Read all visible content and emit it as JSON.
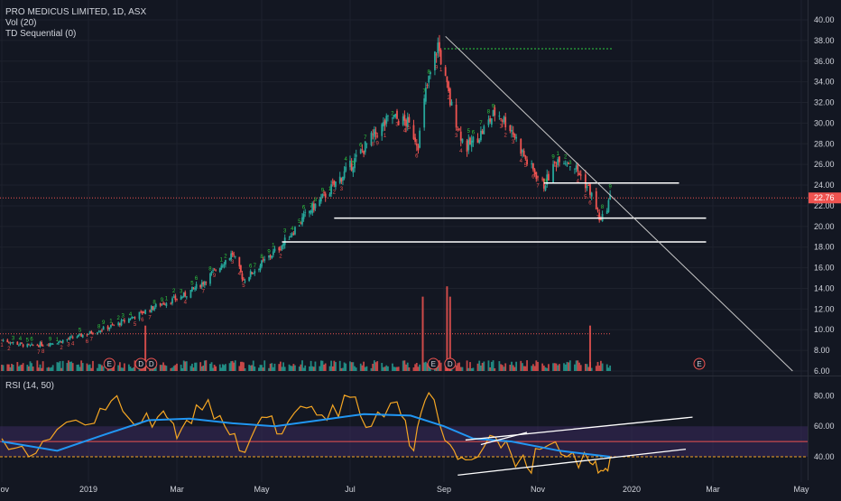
{
  "header": {
    "symbol_line": "PRO MEDICUS LIMITED, 1D, ASX",
    "vol_label": "Vol (20)",
    "td_label": "TD Sequential (0)",
    "rsi_label": "RSI (14, 50)"
  },
  "colors": {
    "background": "#131722",
    "grid": "#1e222d",
    "up": "#26a69a",
    "down": "#ef5350",
    "td_up": "#2ecc40",
    "td_down": "#ef5350",
    "trendline": "#c8c8c8",
    "support": "#ffffff",
    "rsi_line": "#f5a623",
    "rsi_ma": "#2196f3",
    "rsi_band": "#3a2a5c",
    "price_label_bg": "#ef5350"
  },
  "chart_data": [
    {
      "type": "candlestick",
      "title": "PRO MEDICUS LIMITED, 1D, ASX",
      "x_ticks": [
        "Nov",
        "2019",
        "Mar",
        "May",
        "Jul",
        "Sep",
        "Nov",
        "2020",
        "Mar",
        "May"
      ],
      "x_tick_dates": [
        "2018-11-01",
        "2019-01-01",
        "2019-03-01",
        "2019-05-01",
        "2019-07-01",
        "2019-09-01",
        "2019-11-01",
        "2020-01-01",
        "2020-03-01",
        "2020-05-01"
      ],
      "y_ticks": [
        "40.00",
        "38.00",
        "36.00",
        "34.00",
        "32.00",
        "30.00",
        "28.00",
        "26.00",
        "24.00",
        "22.00",
        "20.00",
        "18.00",
        "16.00",
        "14.00",
        "12.00",
        "10.00",
        "8.00",
        "6.00"
      ],
      "ylim": [
        6,
        40
      ],
      "last_price": "22.76",
      "close_series": [
        [
          "2018-11-01",
          9.0
        ],
        [
          "2018-11-20",
          8.4
        ],
        [
          "2018-12-10",
          8.8
        ],
        [
          "2018-12-31",
          9.6
        ],
        [
          "2019-01-20",
          10.5
        ],
        [
          "2019-02-05",
          11.6
        ],
        [
          "2019-02-20",
          12.6
        ],
        [
          "2019-03-05",
          13.2
        ],
        [
          "2019-03-20",
          14.6
        ],
        [
          "2019-04-01",
          16.2
        ],
        [
          "2019-04-10",
          17.4
        ],
        [
          "2019-04-18",
          14.8
        ],
        [
          "2019-05-01",
          16.4
        ],
        [
          "2019-05-15",
          18.2
        ],
        [
          "2019-06-01",
          21.2
        ],
        [
          "2019-06-15",
          23.2
        ],
        [
          "2019-07-01",
          25.8
        ],
        [
          "2019-07-15",
          28.5
        ],
        [
          "2019-07-28",
          30.6
        ],
        [
          "2019-08-08",
          30.0
        ],
        [
          "2019-08-15",
          28.0
        ],
        [
          "2019-08-20",
          33.0
        ],
        [
          "2019-08-28",
          37.6
        ],
        [
          "2019-09-05",
          32.0
        ],
        [
          "2019-09-15",
          27.5
        ],
        [
          "2019-09-25",
          29.0
        ],
        [
          "2019-10-05",
          31.2
        ],
        [
          "2019-10-15",
          29.4
        ],
        [
          "2019-10-25",
          26.2
        ],
        [
          "2019-11-05",
          24.0
        ],
        [
          "2019-11-15",
          26.8
        ],
        [
          "2019-11-25",
          25.8
        ],
        [
          "2019-12-05",
          23.4
        ],
        [
          "2019-12-12",
          20.4
        ],
        [
          "2019-12-18",
          22.76
        ]
      ],
      "volume_markers": [
        "E",
        "D",
        "D",
        "E",
        "D",
        "E"
      ],
      "volume_marker_dates": [
        "2019-01-15",
        "2019-02-05",
        "2019-02-12",
        "2019-08-25",
        "2019-09-05",
        "2020-02-20"
      ],
      "volume_spikes": [
        {
          "date": "2019-02-08",
          "level": 10.4
        },
        {
          "date": "2019-08-18",
          "level": 13.2
        },
        {
          "date": "2019-09-03",
          "level": 14.2
        },
        {
          "date": "2019-09-05",
          "level": 13.2
        },
        {
          "date": "2019-12-05",
          "level": 10.4
        }
      ],
      "levels": {
        "resistance_top": 37.2,
        "support_1": 24.2,
        "support_2": 20.8,
        "support_3": 18.5,
        "dotted_low": 9.6
      },
      "trendline": [
        [
          "2019-09-02",
          38.4
        ],
        [
          "2020-04-25",
          6.0
        ]
      ]
    },
    {
      "type": "line",
      "title": "RSI (14, 50)",
      "y_ticks": [
        "80.00",
        "60.00",
        "40.00"
      ],
      "ylim": [
        27,
        85
      ],
      "x_ticks": [
        "Nov",
        "2019",
        "Mar",
        "May",
        "Jul",
        "Sep",
        "Nov",
        "2020",
        "Mar",
        "May"
      ],
      "series": [
        {
          "values": [
            [
              "2018-11-01",
              52
            ],
            [
              "2018-11-20",
              40
            ],
            [
              "2018-12-10",
              58
            ],
            [
              "2019-01-05",
              62
            ],
            [
              "2019-01-20",
              80
            ],
            [
              "2019-02-05",
              62
            ],
            [
              "2019-02-20",
              70
            ],
            [
              "2019-03-01",
              52
            ],
            [
              "2019-03-15",
              74
            ],
            [
              "2019-04-01",
              67
            ],
            [
              "2019-04-15",
              44
            ],
            [
              "2019-05-01",
              66
            ],
            [
              "2019-05-15",
              55
            ],
            [
              "2019-06-01",
              72
            ],
            [
              "2019-06-15",
              64
            ],
            [
              "2019-07-01",
              79
            ],
            [
              "2019-07-15",
              60
            ],
            [
              "2019-08-01",
              76
            ],
            [
              "2019-08-12",
              44
            ],
            [
              "2019-08-22",
              82
            ],
            [
              "2019-09-05",
              48
            ],
            [
              "2019-09-15",
              38
            ],
            [
              "2019-10-01",
              54
            ],
            [
              "2019-10-15",
              41
            ],
            [
              "2019-10-25",
              33
            ],
            [
              "2019-11-05",
              46
            ],
            [
              "2019-11-20",
              40
            ],
            [
              "2019-12-05",
              36
            ],
            [
              "2019-12-12",
              31
            ],
            [
              "2019-12-18",
              39
            ]
          ]
        },
        {
          "values": [
            [
              "2018-11-01",
              50
            ],
            [
              "2018-12-10",
              44
            ],
            [
              "2019-01-10",
              54
            ],
            [
              "2019-02-10",
              64
            ],
            [
              "2019-03-10",
              65
            ],
            [
              "2019-04-10",
              62
            ],
            [
              "2019-05-10",
              60
            ],
            [
              "2019-06-10",
              64
            ],
            [
              "2019-07-10",
              68
            ],
            [
              "2019-08-10",
              67
            ],
            [
              "2019-09-01",
              60
            ],
            [
              "2019-09-20",
              52
            ],
            [
              "2019-10-15",
              50
            ],
            [
              "2019-11-15",
              44
            ],
            [
              "2019-12-18",
              40
            ]
          ]
        }
      ],
      "band": [
        40,
        60
      ],
      "midline": 50,
      "trendlines": [
        [
          [
            "2019-09-15",
            51
          ],
          [
            "2020-02-15",
            66
          ]
        ],
        [
          [
            "2019-09-10",
            28
          ],
          [
            "2020-02-10",
            45
          ]
        ],
        [
          [
            "2019-09-25",
            48
          ],
          [
            "2019-10-25",
            56
          ]
        ]
      ]
    }
  ]
}
